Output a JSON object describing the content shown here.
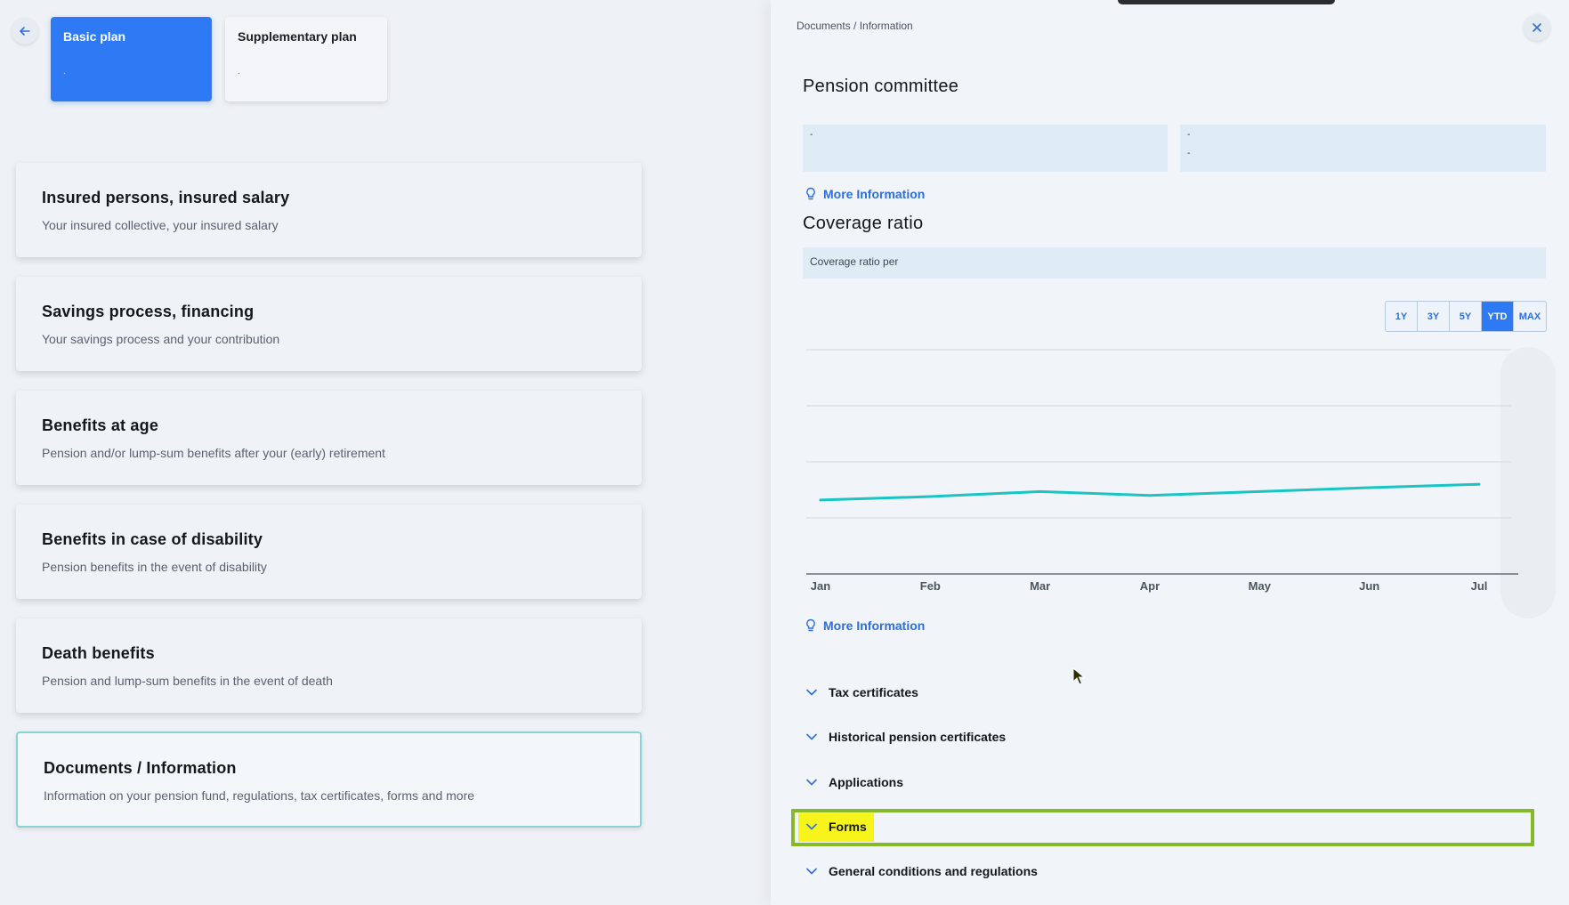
{
  "left": {
    "plans": [
      {
        "label": "Basic plan",
        "sub": ".",
        "active": true
      },
      {
        "label": "Supplementary plan",
        "sub": ".",
        "active": false
      }
    ],
    "cards": [
      {
        "title": "Insured persons, insured salary",
        "desc": "Your insured collective, your insured salary"
      },
      {
        "title": "Savings process, financing",
        "desc": "Your savings process and your contribution"
      },
      {
        "title": "Benefits at age",
        "desc": "Pension and/or lump-sum benefits after your (early) retirement"
      },
      {
        "title": "Benefits in case of disability",
        "desc": "Pension benefits in the event of disability"
      },
      {
        "title": "Death benefits",
        "desc": "Pension and lump-sum benefits in the event of death"
      },
      {
        "title": "Documents / Information",
        "desc": "Information on your pension fund, regulations, tax certificates, forms and more"
      }
    ]
  },
  "right": {
    "breadcrumb": "Documents / Information",
    "pension_committee_title": "Pension committee",
    "committee_boxes": [
      {
        "line1": "-",
        "line2": ""
      },
      {
        "line1": "-",
        "line2": "-"
      }
    ],
    "more_info_label": "More Information",
    "coverage_title": "Coverage ratio",
    "coverage_label": "Coverage ratio per",
    "periods": [
      "1Y",
      "3Y",
      "5Y",
      "YTD",
      "MAX"
    ],
    "active_period": "YTD",
    "accordion": [
      {
        "label": "Tax certificates"
      },
      {
        "label": "Historical pension certificates"
      },
      {
        "label": "Applications"
      },
      {
        "label": "Forms"
      },
      {
        "label": "General conditions and regulations"
      }
    ]
  },
  "colors": {
    "accent": "#2e7af5",
    "link": "#2e6fe0",
    "line": "#1ac4c4",
    "highlight_frame": "#86b92a",
    "highlight_fill": "#f6f41b"
  },
  "chart_data": {
    "type": "line",
    "categories": [
      "Jan",
      "Feb",
      "Mar",
      "Apr",
      "May",
      "Jun",
      "Jul"
    ],
    "series": [
      {
        "values": [
          0.32,
          0.38,
          0.47,
          0.4,
          0.47,
          0.54,
          0.6
        ]
      }
    ],
    "ylim": [
      -1,
      3
    ],
    "grid": true,
    "xlabel": "",
    "ylabel": ""
  }
}
